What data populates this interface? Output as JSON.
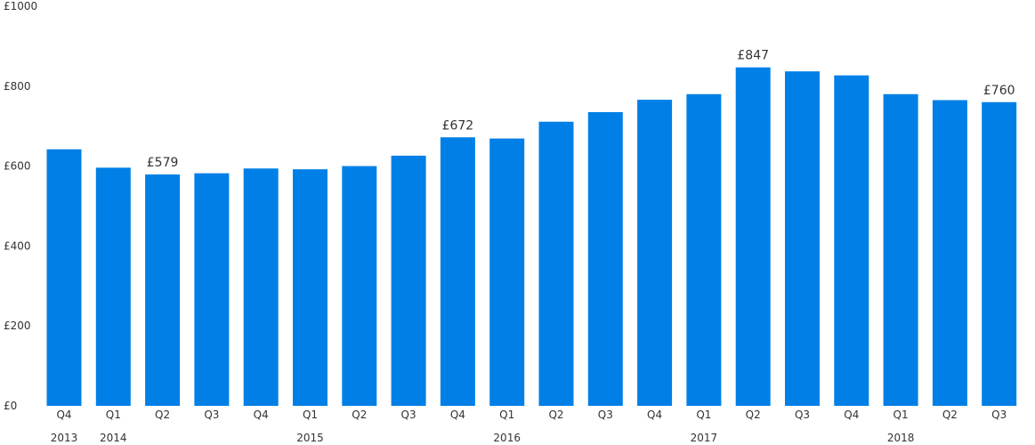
{
  "chart_data": {
    "type": "bar",
    "title": "",
    "xlabel": "",
    "ylabel": "",
    "ylim": [
      0,
      1000
    ],
    "yticks": [
      0,
      200,
      400,
      600,
      800,
      1000
    ],
    "ytick_labels": [
      "£0",
      "£200",
      "£400",
      "£600",
      "£800",
      "£1000"
    ],
    "grid": false,
    "bar_color": "#0080e6",
    "categories": [
      "Q4",
      "Q1",
      "Q2",
      "Q3",
      "Q4",
      "Q1",
      "Q2",
      "Q3",
      "Q4",
      "Q1",
      "Q2",
      "Q3",
      "Q4",
      "Q1",
      "Q2",
      "Q3",
      "Q4",
      "Q1",
      "Q2",
      "Q3"
    ],
    "values": [
      642,
      596,
      579,
      582,
      594,
      592,
      600,
      626,
      672,
      669,
      711,
      735,
      766,
      780,
      847,
      837,
      827,
      780,
      765,
      760
    ],
    "year_labels": [
      {
        "text": "2013",
        "index": 0
      },
      {
        "text": "2014",
        "index": 1
      },
      {
        "text": "2015",
        "index": 5
      },
      {
        "text": "2016",
        "index": 9
      },
      {
        "text": "2017",
        "index": 13
      },
      {
        "text": "2018",
        "index": 17
      }
    ],
    "data_labels": [
      {
        "index": 2,
        "text": "£579"
      },
      {
        "index": 8,
        "text": "£672"
      },
      {
        "index": 14,
        "text": "£847"
      },
      {
        "index": 19,
        "text": "£760"
      }
    ]
  }
}
